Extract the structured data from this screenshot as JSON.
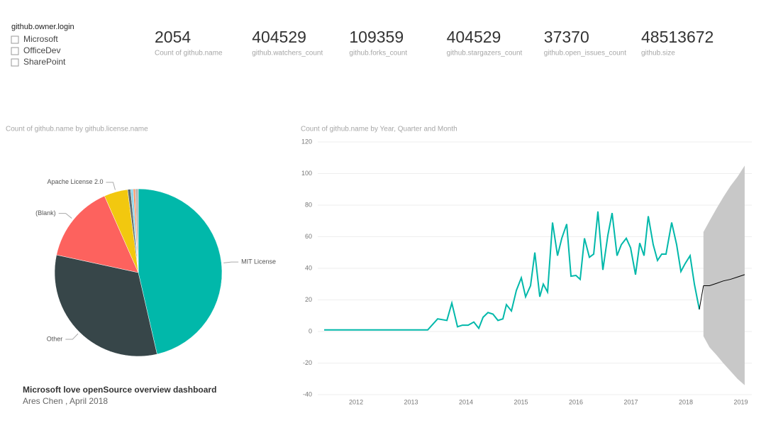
{
  "slicer": {
    "title": "github.owner.login",
    "items": [
      "Microsoft",
      "OfficeDev",
      "SharePoint"
    ]
  },
  "cards": [
    {
      "value": 2054,
      "label": "Count of github.name"
    },
    {
      "value": 404529,
      "label": "github.watchers_count"
    },
    {
      "value": 109359,
      "label": "github.forks_count"
    },
    {
      "value": 404529,
      "label": "github.stargazers_count"
    },
    {
      "value": 37370,
      "label": "github.open_issues_count"
    },
    {
      "value": 48513672,
      "label": "github.size"
    }
  ],
  "footer": {
    "title": "Microsoft love openSource overview dashboard",
    "subtitle": "Ares Chen , April 2018"
  },
  "chart_data": [
    {
      "type": "pie",
      "title": "Count of github.name by github.license.name",
      "categories": [
        "MIT License",
        "Other",
        "(Blank)",
        "Apache License 2.0",
        null,
        null,
        null,
        null
      ],
      "values": [
        953,
        657,
        308,
        94,
        12,
        10,
        8,
        12
      ],
      "colors": [
        "#01b8aa",
        "#374649",
        "#fd625e",
        "#f2c80f",
        "#5f6b6d",
        "#8ad4eb",
        "#fe9666",
        "#b8b8b8"
      ]
    },
    {
      "type": "line",
      "title": "Count of github.name by Year, Quarter and Month",
      "xlim": [
        2011.07,
        2019.2
      ],
      "xticks": [
        2012,
        2013,
        2014,
        2015,
        2016,
        2017,
        2018,
        2019
      ],
      "ylim": [
        -40,
        120
      ],
      "yticks": [
        -40,
        -20,
        0,
        20,
        40,
        60,
        80,
        100,
        120
      ],
      "grid": true,
      "x": [
        2011.419,
        2013.303,
        2013.484,
        2013.652,
        2013.742,
        2013.845,
        2013.935,
        2014.039,
        2014.142,
        2014.232,
        2014.31,
        2014.4,
        2014.49,
        2014.581,
        2014.671,
        2014.735,
        2014.826,
        2014.916,
        2015.006,
        2015.084,
        2015.174,
        2015.252,
        2015.342,
        2015.406,
        2015.484,
        2015.574,
        2015.665,
        2015.742,
        2015.832,
        2015.91,
        2016.0,
        2016.077,
        2016.155,
        2016.245,
        2016.323,
        2016.4,
        2016.49,
        2016.581,
        2016.658,
        2016.748,
        2016.826,
        2016.916,
        2016.994,
        2017.084,
        2017.161,
        2017.239,
        2017.316,
        2017.406,
        2017.484,
        2017.561,
        2017.639,
        2017.742,
        2017.832,
        2017.91,
        2017.987,
        2018.077,
        2018.155,
        2018.245
      ],
      "series": [
        {
          "color": "#01b8aa",
          "values": [
            1,
            1,
            8,
            7,
            18,
            3,
            4,
            4,
            6,
            2,
            9,
            12,
            11,
            7,
            8,
            17,
            13,
            26,
            34,
            22,
            29,
            50,
            22,
            30,
            25,
            69,
            48,
            59,
            68,
            35,
            35.5,
            33,
            59,
            47,
            49,
            76,
            39,
            61,
            75,
            48,
            55,
            59,
            53,
            36,
            56,
            48,
            73,
            55,
            45,
            49,
            49,
            69,
            55,
            38,
            43,
            48,
            30,
            14
          ]
        }
      ],
      "forecast": {
        "color": "#000000",
        "band_color": "#c8c8c8",
        "x": [
          2018.32,
          2018.43,
          2018.56,
          2018.68,
          2018.81,
          2018.94,
          2019.07
        ],
        "values": [
          29,
          29,
          30.5,
          32,
          33,
          34.5,
          36
        ],
        "upper": [
          63,
          70,
          78,
          85,
          92,
          98,
          105
        ],
        "lower": [
          -3,
          -10,
          -15,
          -20,
          -25,
          -30,
          -34
        ]
      }
    }
  ]
}
